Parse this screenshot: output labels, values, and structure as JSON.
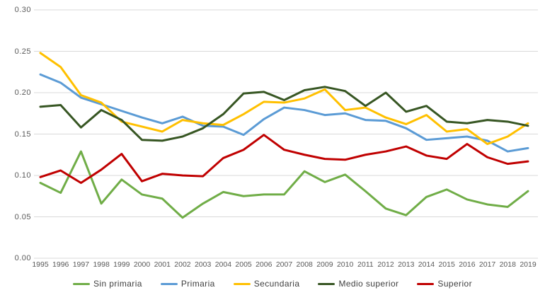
{
  "chart_data": {
    "type": "line",
    "title": "",
    "xlabel": "",
    "ylabel": "",
    "ylim": [
      0,
      0.3
    ],
    "grid": "horizontal",
    "legend_position": "bottom",
    "tick_color": "#595959",
    "gridline_color": "#d9d9d9",
    "y_ticks": [
      "0.00",
      "0.05",
      "0.10",
      "0.15",
      "0.20",
      "0.25",
      "0.30"
    ],
    "x": [
      "1995",
      "1996",
      "1997",
      "1998",
      "1999",
      "2000",
      "2001",
      "2002",
      "2003",
      "2004",
      "2005",
      "2006",
      "2007",
      "2008",
      "2009",
      "2010",
      "2011",
      "2012",
      "2013",
      "2014",
      "2015",
      "2016",
      "2017",
      "2018",
      "2019"
    ],
    "series": [
      {
        "name": "Sin primaria",
        "color": "#70AD47",
        "values": [
          0.091,
          0.079,
          0.129,
          0.066,
          0.095,
          0.077,
          0.072,
          0.049,
          0.066,
          0.08,
          0.075,
          0.077,
          0.077,
          0.105,
          0.092,
          0.101,
          0.081,
          0.06,
          0.052,
          0.074,
          0.083,
          0.071,
          0.065,
          0.062,
          0.081
        ]
      },
      {
        "name": "Primaria",
        "color": "#5B9BD5",
        "values": [
          0.222,
          0.212,
          0.194,
          0.186,
          0.178,
          0.17,
          0.163,
          0.171,
          0.16,
          0.159,
          0.149,
          0.168,
          0.182,
          0.179,
          0.173,
          0.175,
          0.167,
          0.166,
          0.157,
          0.143,
          0.145,
          0.147,
          0.142,
          0.129,
          0.133
        ]
      },
      {
        "name": "Secundaria",
        "color": "#FFC000",
        "values": [
          0.248,
          0.231,
          0.197,
          0.188,
          0.165,
          0.159,
          0.153,
          0.167,
          0.163,
          0.161,
          0.174,
          0.189,
          0.188,
          0.193,
          0.204,
          0.179,
          0.182,
          0.17,
          0.162,
          0.173,
          0.153,
          0.156,
          0.138,
          0.147,
          0.163
        ]
      },
      {
        "name": "Medio superior",
        "color": "#375623",
        "values": [
          0.183,
          0.185,
          0.158,
          0.179,
          0.167,
          0.143,
          0.142,
          0.147,
          0.157,
          0.174,
          0.199,
          0.201,
          0.191,
          0.203,
          0.207,
          0.202,
          0.184,
          0.2,
          0.177,
          0.184,
          0.165,
          0.163,
          0.167,
          0.165,
          0.16
        ]
      },
      {
        "name": "Superior",
        "color": "#C00000",
        "values": [
          0.098,
          0.106,
          0.091,
          0.107,
          0.126,
          0.093,
          0.102,
          0.1,
          0.099,
          0.121,
          0.131,
          0.149,
          0.131,
          0.125,
          0.12,
          0.119,
          0.125,
          0.129,
          0.135,
          0.124,
          0.12,
          0.138,
          0.122,
          0.114,
          0.117
        ]
      }
    ]
  }
}
